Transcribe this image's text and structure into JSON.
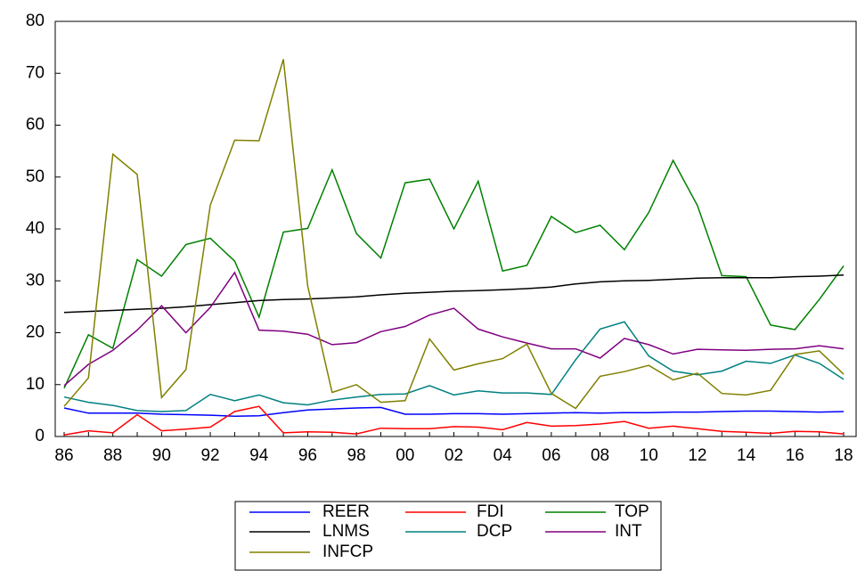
{
  "chart_data": {
    "type": "line",
    "categories": [
      "86",
      null,
      "88",
      null,
      "90",
      null,
      "92",
      null,
      "94",
      null,
      "96",
      null,
      "98",
      null,
      "00",
      null,
      "02",
      null,
      "04",
      null,
      "06",
      null,
      "08",
      null,
      "10",
      null,
      "12",
      null,
      "14",
      null,
      "16",
      null,
      "18"
    ],
    "ylim": [
      0,
      80
    ],
    "yticks": [
      0,
      10,
      20,
      30,
      40,
      50,
      60,
      70,
      80
    ],
    "series": [
      {
        "name": "REER",
        "color": "#0000ff",
        "values": [
          5.5,
          4.5,
          4.5,
          4.5,
          4.3,
          4.2,
          4.1,
          3.9,
          4.0,
          4.6,
          5.1,
          5.3,
          5.5,
          5.6,
          4.3,
          4.3,
          4.4,
          4.4,
          4.3,
          4.4,
          4.5,
          4.6,
          4.5,
          4.6,
          4.6,
          4.7,
          4.7,
          4.8,
          4.9,
          4.9,
          4.8,
          4.7,
          4.8
        ]
      },
      {
        "name": "FDI",
        "color": "#ff0000",
        "values": [
          0.3,
          1.1,
          0.7,
          4.2,
          1.1,
          1.4,
          1.8,
          4.8,
          5.8,
          0.7,
          0.9,
          0.8,
          0.5,
          1.6,
          1.5,
          1.5,
          1.9,
          1.8,
          1.3,
          2.7,
          2.0,
          2.1,
          2.4,
          2.9,
          1.6,
          2.0,
          1.5,
          1.0,
          0.8,
          0.6,
          1.0,
          0.9,
          0.5
        ]
      },
      {
        "name": "TOP",
        "color": "#008000",
        "values": [
          9.3,
          19.6,
          17.0,
          34.1,
          30.9,
          37.0,
          38.2,
          33.8,
          23.0,
          39.4,
          40.1,
          51.4,
          39.1,
          34.4,
          48.9,
          49.6,
          40.0,
          49.2,
          31.9,
          33.0,
          42.4,
          39.3,
          40.7,
          36.0,
          43.2,
          53.2,
          44.5,
          31.0,
          30.8,
          21.5,
          20.6,
          26.4,
          32.9
        ]
      },
      {
        "name": "LNMS",
        "color": "#000000",
        "values": [
          23.9,
          24.1,
          24.3,
          24.5,
          24.7,
          25.0,
          25.4,
          25.8,
          26.2,
          26.4,
          26.5,
          26.7,
          26.9,
          27.3,
          27.6,
          27.8,
          28.0,
          28.1,
          28.3,
          28.5,
          28.8,
          29.4,
          29.8,
          30.0,
          30.1,
          30.3,
          30.5,
          30.6,
          30.6,
          30.6,
          30.8,
          30.9,
          31.1
        ]
      },
      {
        "name": "DCP",
        "color": "#008080",
        "values": [
          7.6,
          6.6,
          6.0,
          5.0,
          4.8,
          5.0,
          8.1,
          6.9,
          8.0,
          6.5,
          6.1,
          7.0,
          7.6,
          8.1,
          8.2,
          9.8,
          8.0,
          8.8,
          8.4,
          8.4,
          8.1,
          14.8,
          20.7,
          22.1,
          15.5,
          12.6,
          11.9,
          12.6,
          14.5,
          14.1,
          15.7,
          14.1,
          11.0
        ]
      },
      {
        "name": "INT",
        "color": "#800080",
        "values": [
          9.8,
          13.9,
          16.6,
          20.5,
          25.2,
          20.0,
          24.9,
          31.6,
          20.5,
          20.3,
          19.7,
          17.7,
          18.1,
          20.2,
          21.2,
          23.4,
          24.7,
          20.7,
          19.2,
          18.0,
          16.9,
          16.9,
          15.1,
          18.9,
          17.7,
          15.9,
          16.8,
          16.7,
          16.6,
          16.8,
          16.9,
          17.5,
          16.9
        ]
      },
      {
        "name": "INFCP",
        "color": "#808000",
        "values": [
          5.8,
          11.3,
          54.4,
          50.5,
          7.5,
          12.9,
          44.6,
          57.1,
          57.0,
          72.7,
          29.0,
          8.5,
          10.0,
          6.6,
          6.9,
          18.8,
          12.8,
          14.0,
          15.0,
          17.8,
          8.3,
          5.4,
          11.6,
          12.5,
          13.7,
          10.9,
          12.2,
          8.3,
          8.0,
          8.9,
          15.8,
          16.5,
          12.0
        ]
      }
    ]
  }
}
